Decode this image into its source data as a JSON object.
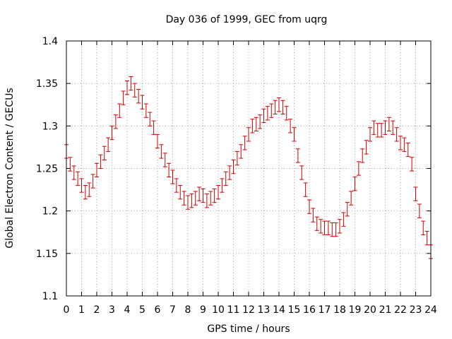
{
  "chart_data": {
    "type": "scatter",
    "title": "Day 036 of 1999, GEC from uqrg",
    "xlabel": "GPS time / hours",
    "ylabel": "Global Electron Content / GECUs",
    "xlim": [
      0,
      24
    ],
    "ylim": [
      1.1,
      1.4
    ],
    "grid": true,
    "xticks": [
      0,
      1,
      2,
      3,
      4,
      5,
      6,
      7,
      8,
      9,
      10,
      11,
      12,
      13,
      14,
      15,
      16,
      17,
      18,
      19,
      20,
      21,
      22,
      23,
      24
    ],
    "yticks": [
      1.1,
      1.15,
      1.2,
      1.25,
      1.3,
      1.35,
      1.4
    ],
    "ytick_labels": [
      "1.1",
      "1.15",
      "1.2",
      "1.25",
      "1.3",
      "1.35",
      "1.4"
    ],
    "error": 0.008,
    "series": [
      {
        "name": "GEC",
        "color": "#cc0000",
        "x": [
          0,
          0.25,
          0.5,
          0.75,
          1,
          1.25,
          1.5,
          1.75,
          2,
          2.25,
          2.5,
          2.75,
          3,
          3.25,
          3.5,
          3.75,
          4,
          4.25,
          4.5,
          4.75,
          5,
          5.25,
          5.5,
          5.75,
          6,
          6.25,
          6.5,
          6.75,
          7,
          7.25,
          7.5,
          7.75,
          8,
          8.25,
          8.5,
          8.75,
          9,
          9.25,
          9.5,
          9.75,
          10,
          10.25,
          10.5,
          10.75,
          11,
          11.25,
          11.5,
          11.75,
          12,
          12.25,
          12.5,
          12.75,
          13,
          13.25,
          13.5,
          13.75,
          14,
          14.25,
          14.5,
          14.75,
          15,
          15.25,
          15.5,
          15.75,
          16,
          16.25,
          16.5,
          16.75,
          17,
          17.25,
          17.5,
          17.75,
          18,
          18.25,
          18.5,
          18.75,
          19,
          19.25,
          19.5,
          19.75,
          20,
          20.25,
          20.5,
          20.75,
          21,
          21.25,
          21.5,
          21.75,
          22,
          22.25,
          22.5,
          22.75,
          23,
          23.25,
          23.5,
          23.75,
          24
        ],
        "y": [
          1.27,
          1.255,
          1.245,
          1.238,
          1.23,
          1.222,
          1.225,
          1.235,
          1.248,
          1.258,
          1.268,
          1.278,
          1.292,
          1.305,
          1.318,
          1.333,
          1.345,
          1.35,
          1.342,
          1.335,
          1.328,
          1.318,
          1.308,
          1.298,
          1.282,
          1.27,
          1.26,
          1.248,
          1.24,
          1.23,
          1.222,
          1.215,
          1.21,
          1.212,
          1.215,
          1.22,
          1.218,
          1.212,
          1.215,
          1.218,
          1.222,
          1.23,
          1.238,
          1.245,
          1.252,
          1.262,
          1.27,
          1.28,
          1.29,
          1.3,
          1.302,
          1.305,
          1.312,
          1.315,
          1.318,
          1.322,
          1.325,
          1.322,
          1.315,
          1.3,
          1.29,
          1.265,
          1.245,
          1.225,
          1.205,
          1.195,
          1.185,
          1.182,
          1.18,
          1.18,
          1.178,
          1.178,
          1.182,
          1.19,
          1.202,
          1.215,
          1.232,
          1.25,
          1.265,
          1.275,
          1.29,
          1.298,
          1.295,
          1.295,
          1.298,
          1.302,
          1.298,
          1.29,
          1.28,
          1.278,
          1.272,
          1.255,
          1.22,
          1.2,
          1.18,
          1.168,
          1.152
        ]
      }
    ]
  }
}
